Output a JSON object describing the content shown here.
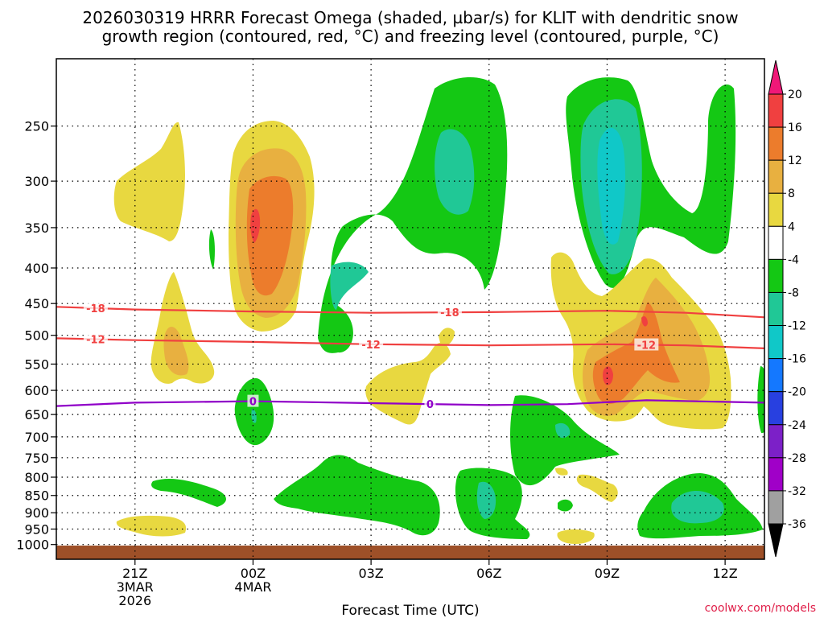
{
  "chart_data": {
    "type": "time-height contour",
    "title_line1": "2026030319 HRRR Forecast Omega (shaded, µbar/s) for KLIT with dendritic snow",
    "title_line2": "growth region (contoured, red, °C) and freezing level (contoured, purple, °C)",
    "xlabel": "Forecast Time (UTC)",
    "watermark": "coolwx.com/models",
    "x_range_hours": [
      -2.0,
      16.0
    ],
    "x_ticks": [
      {
        "hour": 0,
        "lines": [
          "21Z",
          "3MAR",
          "2026"
        ]
      },
      {
        "hour": 3,
        "lines": [
          "00Z",
          "4MAR"
        ]
      },
      {
        "hour": 6,
        "lines": [
          "03Z"
        ]
      },
      {
        "hour": 9,
        "lines": [
          "06Z"
        ]
      },
      {
        "hour": 12,
        "lines": [
          "09Z"
        ]
      },
      {
        "hour": 15,
        "lines": [
          "12Z"
        ]
      }
    ],
    "y_range_hpa": [
      1050,
      200
    ],
    "y_ticks": [
      250,
      300,
      350,
      400,
      450,
      500,
      550,
      600,
      650,
      700,
      750,
      800,
      850,
      900,
      950,
      1000
    ],
    "surface_hpa": 1015,
    "colorbar": {
      "labels": [
        "20",
        "16",
        "12",
        "8",
        "4",
        "-4",
        "-8",
        "-12",
        "-16",
        "-20",
        "-24",
        "-28",
        "-32",
        "-36"
      ],
      "colors": [
        "#f01878",
        "#f04040",
        "#ec7c2c",
        "#e8b040",
        "#e8d840",
        "#ffffff",
        "#14c814",
        "#20c896",
        "#10c8c8",
        "#1478ff",
        "#2840e0",
        "#7c20c8",
        "#a000c8",
        "#a0a0a0",
        "#000000"
      ]
    },
    "series": [
      {
        "name": "-18",
        "color": "#f04040",
        "points": [
          [
            -2.0,
            455
          ],
          [
            0.0,
            459
          ],
          [
            3.0,
            462
          ],
          [
            6.0,
            464
          ],
          [
            9.0,
            463
          ],
          [
            12.0,
            461
          ],
          [
            14.0,
            464
          ],
          [
            16.0,
            471
          ]
        ],
        "labels": [
          [
            -1.0,
            "-18"
          ],
          [
            8.0,
            "-18"
          ]
        ]
      },
      {
        "name": "-12",
        "color": "#f04040",
        "points": [
          [
            -2.0,
            505
          ],
          [
            0.0,
            508
          ],
          [
            3.0,
            511
          ],
          [
            6.0,
            515
          ],
          [
            9.0,
            517
          ],
          [
            12.0,
            515
          ],
          [
            14.0,
            517
          ],
          [
            16.0,
            522
          ]
        ],
        "labels": [
          [
            -1.0,
            "-12"
          ],
          [
            6.0,
            "-12"
          ],
          [
            13.0,
            "-12"
          ]
        ]
      },
      {
        "name": "0",
        "color": "#9000c8",
        "points": [
          [
            -2.0,
            632
          ],
          [
            0.0,
            625
          ],
          [
            3.0,
            622
          ],
          [
            6.0,
            626
          ],
          [
            9.0,
            630
          ],
          [
            11.0,
            628
          ],
          [
            13.0,
            620
          ],
          [
            16.0,
            625
          ]
        ],
        "labels": [
          [
            3.0,
            "0"
          ],
          [
            7.5,
            "0"
          ]
        ]
      }
    ]
  }
}
